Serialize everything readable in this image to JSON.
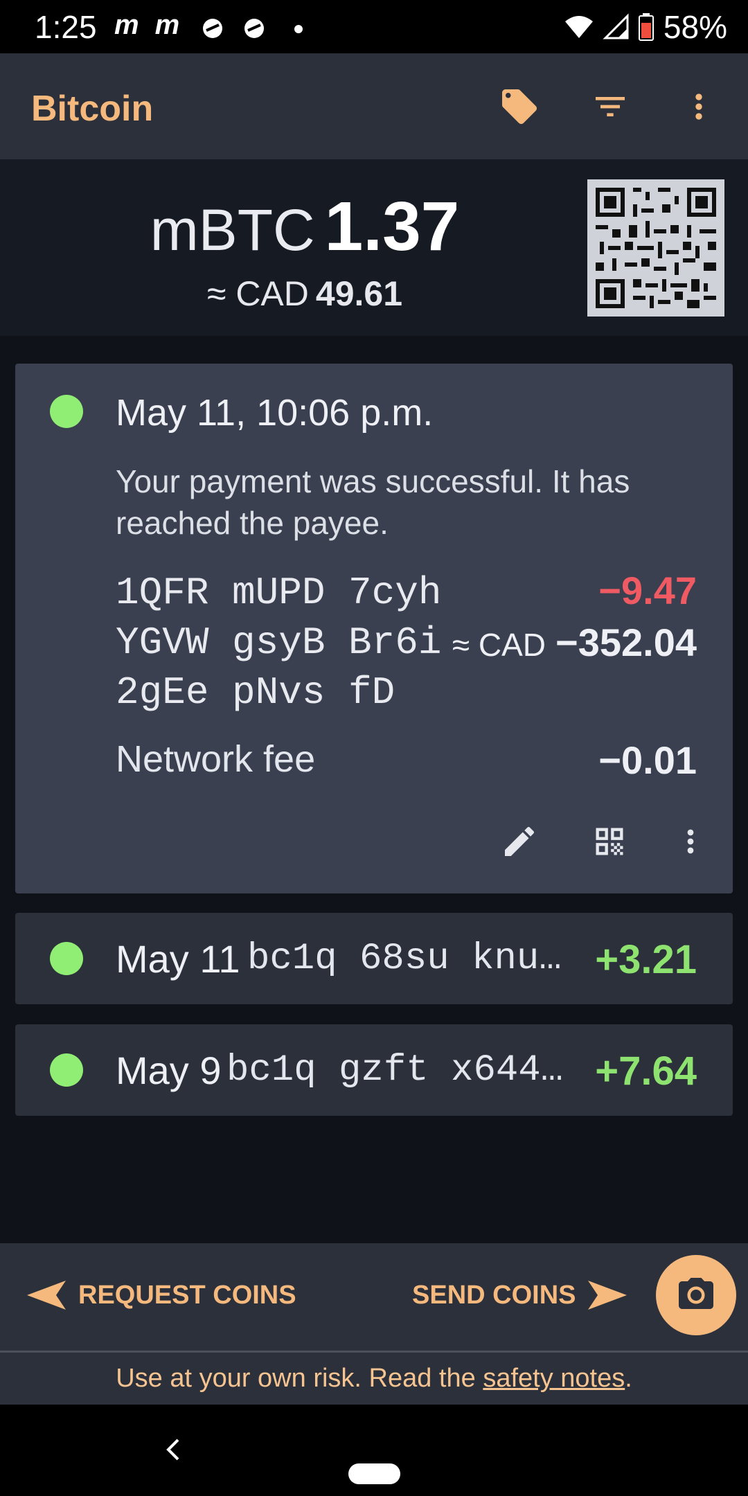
{
  "status_bar": {
    "time": "1:25",
    "notification_icons": "m m",
    "battery": "58%"
  },
  "app_bar": {
    "title": "Bitcoin",
    "icons": [
      "tag-icon",
      "filter-icon",
      "more-vert-icon"
    ]
  },
  "balance": {
    "unit": "mBTC",
    "amount": "1.37",
    "fiat_prefix": "≈ CAD",
    "fiat_amount": "49.61"
  },
  "transactions": [
    {
      "date": "May 11, 10:06 p.m.",
      "message": "Your payment was successful. It has reached the payee.",
      "address": "1QFR mUPD 7cyh\nYGVW gsyB Br6i\n2gEe pNvs fD",
      "amount": "−9.47",
      "fiat_prefix": "≈ CAD",
      "fiat_amount": "−352.04",
      "fee_label": "Network fee",
      "fee": "−0.01"
    },
    {
      "date": "May 11",
      "address": "bc1q 68su knu…",
      "amount": "+3.21"
    },
    {
      "date": "May 9",
      "address": "bc1q gzft x644…",
      "amount": "+7.64"
    }
  ],
  "bottom_bar": {
    "request_label": "REQUEST COINS",
    "send_label": "SEND COINS"
  },
  "footer": {
    "text_before": "Use at your own risk. Read the ",
    "link": "safety notes",
    "text_after": "."
  },
  "colors": {
    "accent": "#f5b97e",
    "negative": "#ef5a63",
    "positive": "#8ee26f",
    "confirmed_dot": "#90ee75"
  }
}
